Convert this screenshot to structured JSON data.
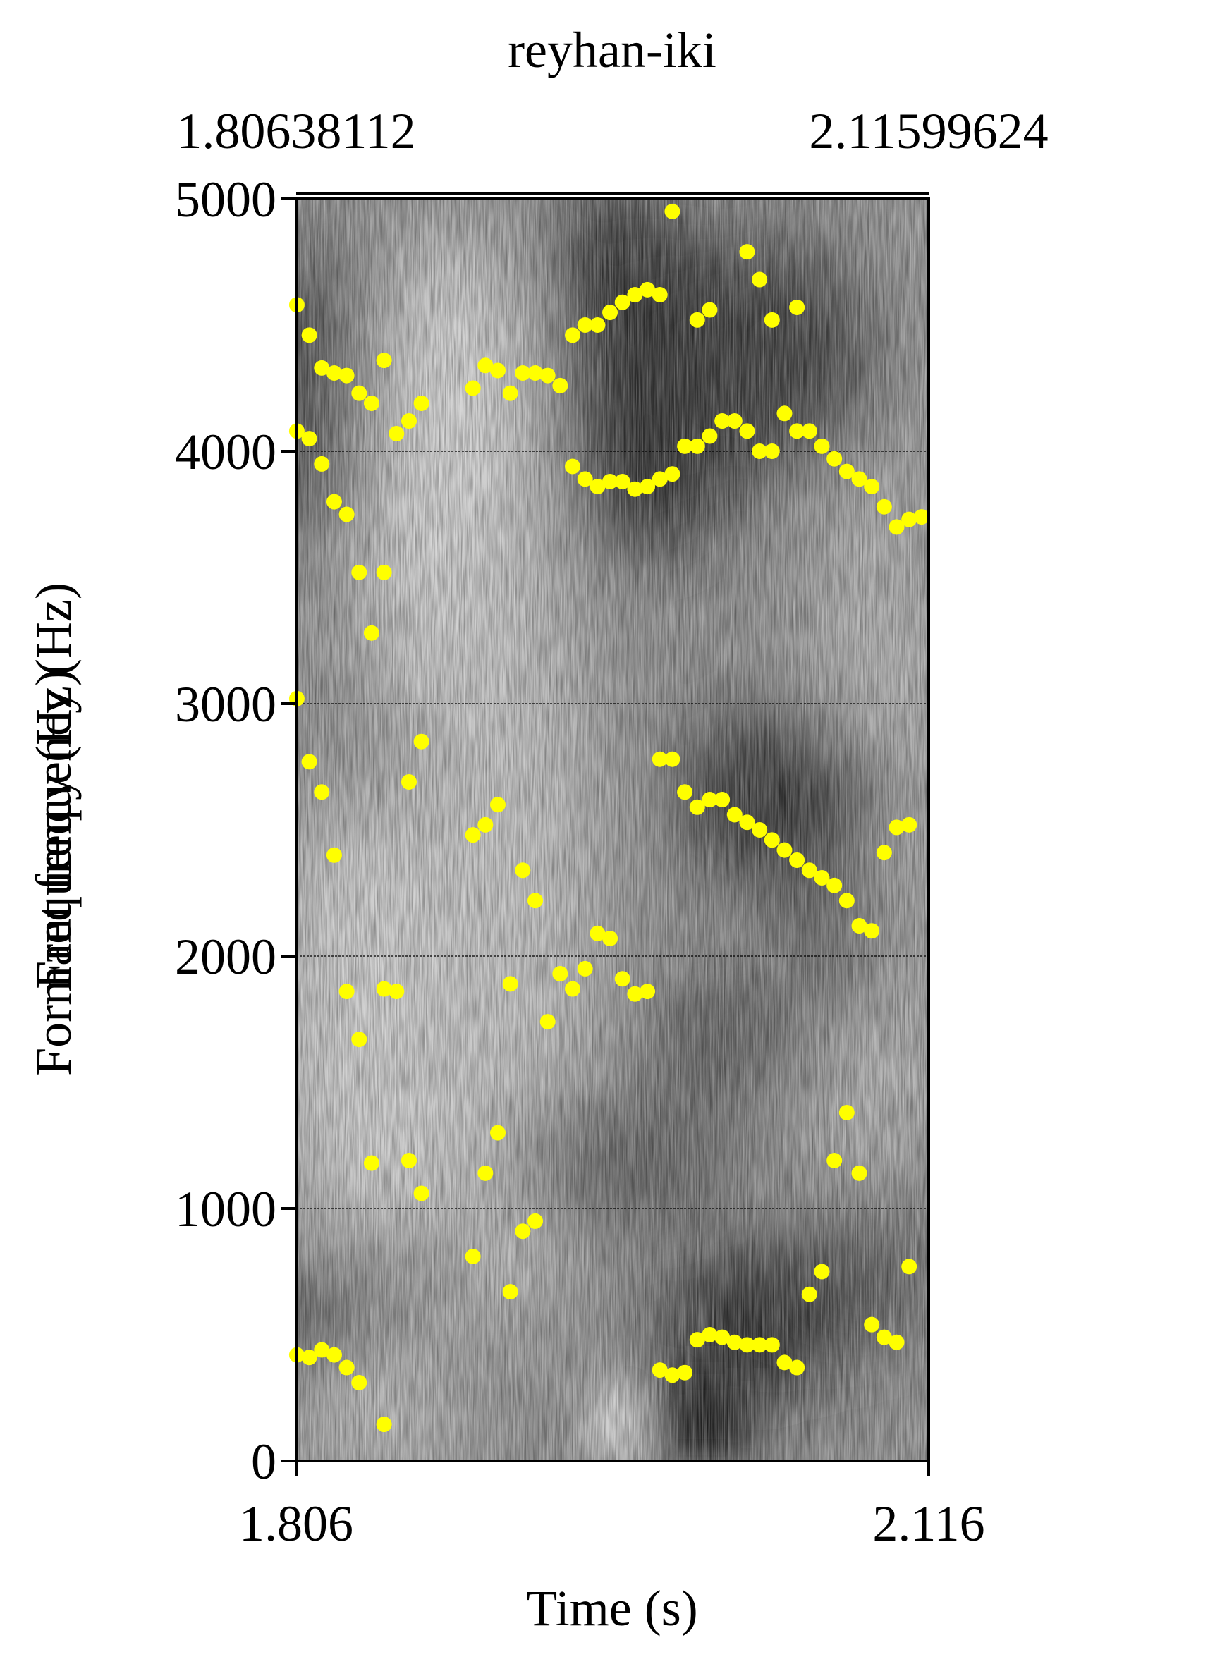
{
  "chart_data": {
    "type": "scatter",
    "title": "reyhan-iki",
    "top_labels": {
      "left": "1.80638112",
      "right": "2.11599624"
    },
    "xlabel": "Time (s)",
    "ylabel": "Formant frequency (Hz)",
    "ylabel_overlap": "Frequency (Hz)",
    "xlim": [
      1.80638112,
      2.11599624
    ],
    "ylim": [
      0,
      5000
    ],
    "x_ticks": [
      "1.806",
      "2.116"
    ],
    "y_ticks": [
      "0",
      "1000",
      "2000",
      "3000",
      "4000",
      "5000"
    ],
    "gridlines": [
      1000,
      2000,
      3000,
      4000
    ],
    "background": "spectrogram (grayscale)",
    "point_color": "#ffff00",
    "series": [
      {
        "frames": [
          {
            "t": 1.8067,
            "f": [
              420,
              3020,
              4080,
              4580
            ]
          },
          {
            "t": 1.8128,
            "f": [
              410,
              2770,
              4050,
              4460
            ]
          },
          {
            "t": 1.8189,
            "f": [
              440,
              2650,
              3950,
              4330
            ]
          },
          {
            "t": 1.825,
            "f": [
              420,
              2400,
              3800,
              4310
            ]
          },
          {
            "t": 1.8311,
            "f": [
              370,
              1860,
              3750,
              4300
            ]
          },
          {
            "t": 1.8372,
            "f": [
              310,
              1670,
              3520,
              4230
            ]
          },
          {
            "t": 1.8433,
            "f": [
              1180,
              3280,
              4190
            ]
          },
          {
            "t": 1.8494,
            "f": [
              145,
              1870,
              3520,
              4360
            ]
          },
          {
            "t": 1.8555,
            "f": [
              1860,
              4070
            ]
          },
          {
            "t": 1.8616,
            "f": [
              1190,
              2690,
              4120
            ]
          },
          {
            "t": 1.8677,
            "f": [
              1060,
              2850,
              4190
            ]
          },
          {
            "t": 1.8929,
            "f": [
              810,
              2480,
              4250
            ]
          },
          {
            "t": 1.899,
            "f": [
              1140,
              2520,
              4340
            ]
          },
          {
            "t": 1.9051,
            "f": [
              1300,
              2600,
              4320
            ]
          },
          {
            "t": 1.9112,
            "f": [
              670,
              1890,
              4230
            ]
          },
          {
            "t": 1.9173,
            "f": [
              910,
              2340,
              4310
            ]
          },
          {
            "t": 1.9234,
            "f": [
              950,
              2220,
              4310
            ]
          },
          {
            "t": 1.9295,
            "f": [
              1740,
              4300
            ]
          },
          {
            "t": 1.9356,
            "f": [
              1930,
              4260
            ]
          },
          {
            "t": 1.9417,
            "f": [
              1870,
              3940,
              4460
            ]
          },
          {
            "t": 1.9478,
            "f": [
              1950,
              3890,
              4500
            ]
          },
          {
            "t": 1.9539,
            "f": [
              2090,
              3860,
              4500
            ]
          },
          {
            "t": 1.96,
            "f": [
              2070,
              3880,
              4550
            ]
          },
          {
            "t": 1.9661,
            "f": [
              1910,
              3880,
              4590
            ]
          },
          {
            "t": 1.9722,
            "f": [
              1850,
              3850,
              4620
            ]
          },
          {
            "t": 1.9783,
            "f": [
              1860,
              3860,
              4640
            ]
          },
          {
            "t": 1.9844,
            "f": [
              360,
              2780,
              3890,
              4620
            ]
          },
          {
            "t": 1.9905,
            "f": [
              340,
              2780,
              3910,
              4950
            ]
          },
          {
            "t": 1.9966,
            "f": [
              350,
              2650,
              4020
            ]
          },
          {
            "t": 2.0027,
            "f": [
              480,
              2590,
              4020,
              4520
            ]
          },
          {
            "t": 2.0088,
            "f": [
              500,
              2620,
              4060,
              4560
            ]
          },
          {
            "t": 2.0149,
            "f": [
              490,
              2620,
              4120
            ]
          },
          {
            "t": 2.021,
            "f": [
              470,
              2560,
              4120
            ]
          },
          {
            "t": 2.0271,
            "f": [
              460,
              2530,
              4080,
              4790
            ]
          },
          {
            "t": 2.0332,
            "f": [
              460,
              2500,
              4000,
              4680
            ]
          },
          {
            "t": 2.0393,
            "f": [
              460,
              2460,
              4000,
              4520
            ]
          },
          {
            "t": 2.0454,
            "f": [
              390,
              2420,
              4150
            ]
          },
          {
            "t": 2.0515,
            "f": [
              370,
              2380,
              4080,
              4570
            ]
          },
          {
            "t": 2.0576,
            "f": [
              660,
              2340,
              4080
            ]
          },
          {
            "t": 2.0637,
            "f": [
              750,
              2310,
              4020
            ]
          },
          {
            "t": 2.0698,
            "f": [
              1190,
              2280,
              3970
            ]
          },
          {
            "t": 2.0759,
            "f": [
              1380,
              2220,
              3920
            ]
          },
          {
            "t": 2.082,
            "f": [
              1140,
              2120,
              3890
            ]
          },
          {
            "t": 2.0881,
            "f": [
              540,
              2100,
              3860
            ]
          },
          {
            "t": 2.0942,
            "f": [
              490,
              2410,
              3780
            ]
          },
          {
            "t": 2.1003,
            "f": [
              470,
              2510,
              3700
            ]
          },
          {
            "t": 2.1064,
            "f": [
              770,
              2520,
              3730
            ]
          },
          {
            "t": 2.1125,
            "f": [
              3740
            ]
          }
        ]
      }
    ]
  }
}
